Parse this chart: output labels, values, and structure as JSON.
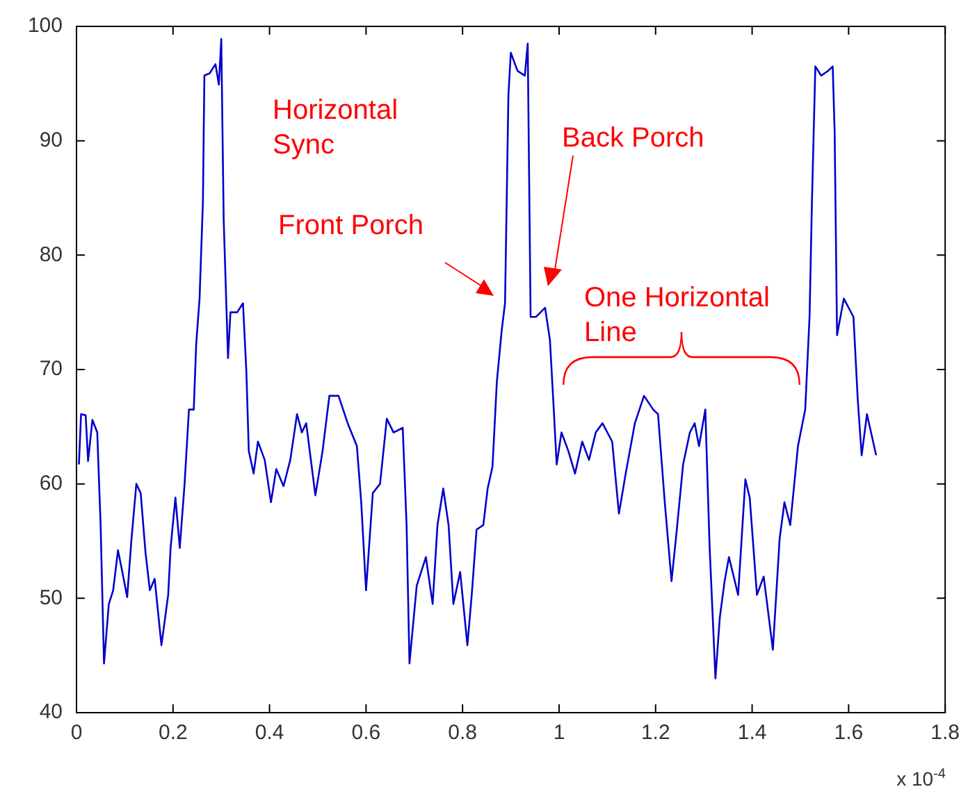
{
  "chart_data": {
    "type": "line",
    "xlabel": "x 10$^{-4}$",
    "x": [
      0.005,
      0.0095,
      0.019,
      0.024,
      0.033,
      0.043,
      0.05,
      0.057,
      0.067,
      0.076,
      0.086,
      0.095,
      0.105,
      0.114,
      0.124,
      0.133,
      0.143,
      0.152,
      0.162,
      0.176,
      0.19,
      0.195,
      0.205,
      0.214,
      0.224,
      0.233,
      0.243,
      0.248,
      0.255,
      0.262,
      0.265,
      0.276,
      0.288,
      0.295,
      0.3,
      0.305,
      0.314,
      0.319,
      0.333,
      0.345,
      0.352,
      0.357,
      0.367,
      0.376,
      0.39,
      0.403,
      0.414,
      0.429,
      0.443,
      0.457,
      0.467,
      0.476,
      0.495,
      0.51,
      0.524,
      0.543,
      0.562,
      0.581,
      0.59,
      0.6,
      0.614,
      0.629,
      0.643,
      0.657,
      0.676,
      0.684,
      0.69,
      0.705,
      0.724,
      0.738,
      0.748,
      0.76,
      0.771,
      0.781,
      0.795,
      0.81,
      0.819,
      0.829,
      0.843,
      0.852,
      0.862,
      0.871,
      0.881,
      0.888,
      0.895,
      0.9,
      0.914,
      0.929,
      0.935,
      0.941,
      0.952,
      0.971,
      0.981,
      0.989,
      0.995,
      1.005,
      1.019,
      1.033,
      1.048,
      1.062,
      1.076,
      1.09,
      1.11,
      1.124,
      1.138,
      1.157,
      1.176,
      1.195,
      1.205,
      1.219,
      1.233,
      1.243,
      1.257,
      1.271,
      1.281,
      1.29,
      1.303,
      1.312,
      1.324,
      1.333,
      1.343,
      1.352,
      1.371,
      1.386,
      1.395,
      1.41,
      1.424,
      1.443,
      1.457,
      1.467,
      1.479,
      1.495,
      1.51,
      1.519,
      1.524,
      1.531,
      1.543,
      1.557,
      1.567,
      1.571,
      1.576,
      1.59,
      1.61,
      1.619,
      1.627,
      1.638,
      1.657
    ],
    "series": [
      {
        "color": "#0000cc",
        "values": [
          61.7,
          66.1,
          66,
          62,
          65.6,
          64.5,
          56.4,
          44.3,
          49.5,
          50.7,
          54.2,
          52.3,
          50.1,
          55.2,
          60,
          59.2,
          54,
          50.7,
          51.7,
          45.9,
          50.3,
          54.4,
          58.8,
          54.4,
          60,
          66.5,
          66.5,
          72.2,
          76.2,
          84.7,
          95.7,
          95.9,
          96.7,
          94.9,
          98.9,
          83.1,
          71,
          75,
          75,
          75.8,
          69.8,
          62.9,
          60.9,
          63.7,
          62.1,
          58.4,
          61.3,
          59.8,
          62.1,
          66.1,
          64.5,
          65.3,
          59,
          62.9,
          67.7,
          67.7,
          65.3,
          63.3,
          58.4,
          50.7,
          59.2,
          60,
          65.7,
          64.5,
          64.9,
          56.4,
          44.3,
          51.1,
          53.6,
          49.5,
          56.4,
          59.6,
          56.4,
          49.5,
          52.3,
          45.9,
          50.3,
          56,
          56.4,
          59.6,
          61.5,
          68.9,
          73.4,
          75.8,
          94,
          97.7,
          96.1,
          95.7,
          98.5,
          74.6,
          74.6,
          75.4,
          72.6,
          66.5,
          61.7,
          64.5,
          62.9,
          60.9,
          63.7,
          62.1,
          64.5,
          65.3,
          63.7,
          57.4,
          60.9,
          65.3,
          67.7,
          66.5,
          66.1,
          58.4,
          51.5,
          55.6,
          61.7,
          64.5,
          65.3,
          63.3,
          66.5,
          54.4,
          43,
          48.3,
          51.5,
          53.6,
          50.3,
          60.4,
          58.8,
          50.3,
          51.9,
          45.5,
          55.2,
          58.4,
          56.4,
          63.3,
          66.5,
          74.6,
          84.7,
          96.5,
          95.7,
          96.1,
          96.5,
          90.8,
          73,
          76.2,
          74.6,
          67.3,
          62.5,
          66.1,
          62.5
        ]
      }
    ],
    "xlim": [
      0,
      1.8
    ],
    "xticks": [
      0,
      0.2,
      0.4,
      0.6,
      0.8,
      1,
      1.2,
      1.4,
      1.6,
      1.8
    ],
    "ylim": [
      40,
      100
    ],
    "yticks": [
      40,
      50,
      60,
      70,
      80,
      90,
      100
    ],
    "grid": false,
    "legend": false,
    "marker": "none",
    "line_style": "solid",
    "annotations": [
      "Horizontal\nSync",
      "Front Porch",
      "Back Porch",
      "One Horizontal\nLine"
    ]
  }
}
